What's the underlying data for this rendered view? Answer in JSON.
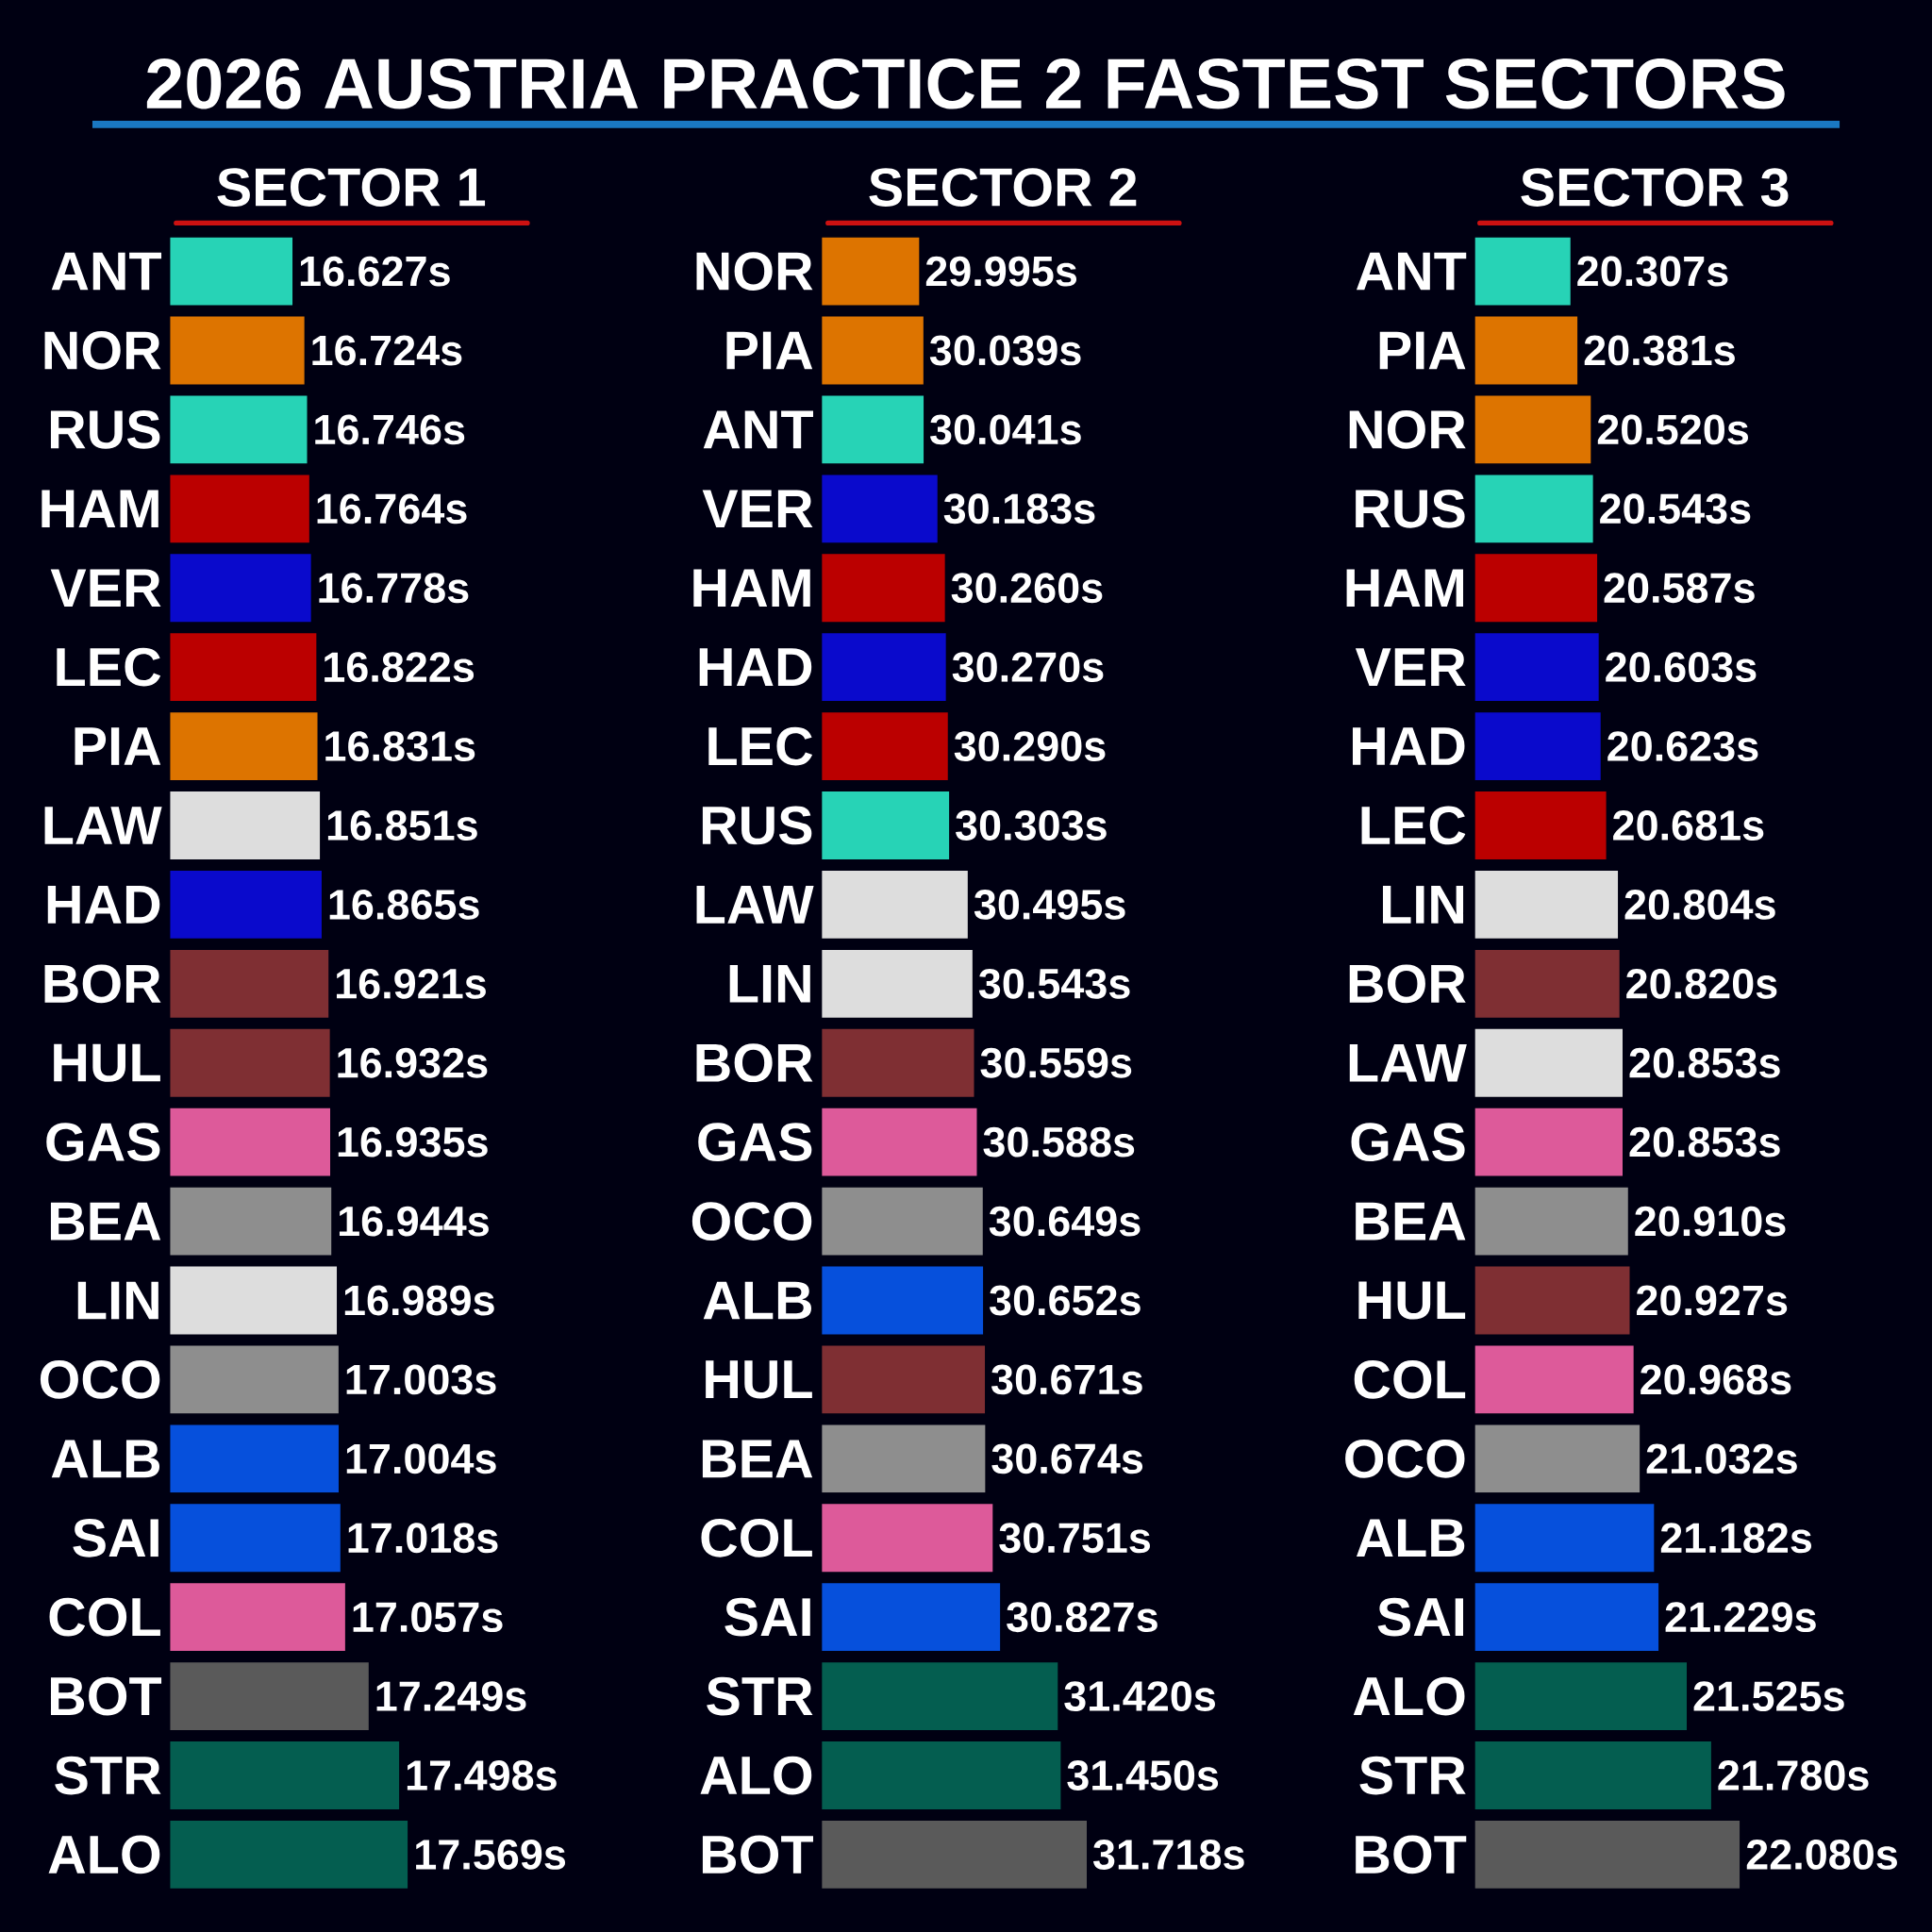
{
  "chart_data": [
    {
      "type": "bar",
      "orientation": "horizontal",
      "title": "2026 AUSTRIA PRACTICE 2 FASTEST SECTORS",
      "subtitle": "SECTOR 1",
      "xlim": [
        15.627,
        17.569
      ],
      "categories": [
        "ANT",
        "NOR",
        "RUS",
        "HAM",
        "VER",
        "LEC",
        "PIA",
        "LAW",
        "HAD",
        "BOR",
        "HUL",
        "GAS",
        "BEA",
        "LIN",
        "OCO",
        "ALB",
        "SAI",
        "COL",
        "BOT",
        "STR",
        "ALO"
      ],
      "values": [
        16.627,
        16.724,
        16.746,
        16.764,
        16.778,
        16.822,
        16.831,
        16.851,
        16.865,
        16.921,
        16.932,
        16.935,
        16.944,
        16.989,
        17.003,
        17.004,
        17.018,
        17.057,
        17.249,
        17.498,
        17.569
      ],
      "value_labels": [
        "16.627s",
        "16.724s",
        "16.746s",
        "16.764s",
        "16.778s",
        "16.822s",
        "16.831s",
        "16.851s",
        "16.865s",
        "16.921s",
        "16.932s",
        "16.935s",
        "16.944s",
        "16.989s",
        "17.003s",
        "17.004s",
        "17.018s",
        "17.057s",
        "17.249s",
        "17.498s",
        "17.569s"
      ],
      "colors": [
        "#27d3b6",
        "#dd7400",
        "#27d3b6",
        "#bb0000",
        "#0a0acc",
        "#bb0000",
        "#dd7400",
        "#dddddd",
        "#0a0acc",
        "#7f2f33",
        "#7f2f33",
        "#dd5a9a",
        "#8e8e8e",
        "#dddddd",
        "#8e8e8e",
        "#0650dc",
        "#0650dc",
        "#dd5a9a",
        "#5a5a5a",
        "#045e50",
        "#045e50"
      ]
    },
    {
      "type": "bar",
      "orientation": "horizontal",
      "subtitle": "SECTOR 2",
      "xlim": [
        28.995,
        31.718
      ],
      "categories": [
        "NOR",
        "PIA",
        "ANT",
        "VER",
        "HAM",
        "HAD",
        "LEC",
        "RUS",
        "LAW",
        "LIN",
        "BOR",
        "GAS",
        "OCO",
        "ALB",
        "HUL",
        "BEA",
        "COL",
        "SAI",
        "STR",
        "ALO",
        "BOT"
      ],
      "values": [
        29.995,
        30.039,
        30.041,
        30.183,
        30.26,
        30.27,
        30.29,
        30.303,
        30.495,
        30.543,
        30.559,
        30.588,
        30.649,
        30.652,
        30.671,
        30.674,
        30.751,
        30.827,
        31.42,
        31.45,
        31.718
      ],
      "value_labels": [
        "29.995s",
        "30.039s",
        "30.041s",
        "30.183s",
        "30.260s",
        "30.270s",
        "30.290s",
        "30.303s",
        "30.495s",
        "30.543s",
        "30.559s",
        "30.588s",
        "30.649s",
        "30.652s",
        "30.671s",
        "30.674s",
        "30.751s",
        "30.827s",
        "31.420s",
        "31.450s",
        "31.718s"
      ],
      "colors": [
        "#dd7400",
        "#dd7400",
        "#27d3b6",
        "#0a0acc",
        "#bb0000",
        "#0a0acc",
        "#bb0000",
        "#27d3b6",
        "#dddddd",
        "#dddddd",
        "#7f2f33",
        "#dd5a9a",
        "#8e8e8e",
        "#0650dc",
        "#7f2f33",
        "#8e8e8e",
        "#dd5a9a",
        "#0650dc",
        "#045e50",
        "#045e50",
        "#5a5a5a"
      ]
    },
    {
      "type": "bar",
      "orientation": "horizontal",
      "subtitle": "SECTOR 3",
      "xlim": [
        19.307,
        22.08
      ],
      "categories": [
        "ANT",
        "PIA",
        "NOR",
        "RUS",
        "HAM",
        "VER",
        "HAD",
        "LEC",
        "LIN",
        "BOR",
        "LAW",
        "GAS",
        "BEA",
        "HUL",
        "COL",
        "OCO",
        "ALB",
        "SAI",
        "ALO",
        "STR",
        "BOT"
      ],
      "values": [
        20.307,
        20.381,
        20.52,
        20.543,
        20.587,
        20.603,
        20.623,
        20.681,
        20.804,
        20.82,
        20.853,
        20.853,
        20.91,
        20.927,
        20.968,
        21.032,
        21.182,
        21.229,
        21.525,
        21.78,
        22.08
      ],
      "value_labels": [
        "20.307s",
        "20.381s",
        "20.520s",
        "20.543s",
        "20.587s",
        "20.603s",
        "20.623s",
        "20.681s",
        "20.804s",
        "20.820s",
        "20.853s",
        "20.853s",
        "20.910s",
        "20.927s",
        "20.968s",
        "21.032s",
        "21.182s",
        "21.229s",
        "21.525s",
        "21.780s",
        "22.080s"
      ],
      "colors": [
        "#27d3b6",
        "#dd7400",
        "#dd7400",
        "#27d3b6",
        "#bb0000",
        "#0a0acc",
        "#0a0acc",
        "#bb0000",
        "#dddddd",
        "#7f2f33",
        "#dddddd",
        "#dd5a9a",
        "#8e8e8e",
        "#7f2f33",
        "#dd5a9a",
        "#8e8e8e",
        "#0650dc",
        "#0650dc",
        "#045e50",
        "#045e50",
        "#5a5a5a"
      ]
    }
  ]
}
